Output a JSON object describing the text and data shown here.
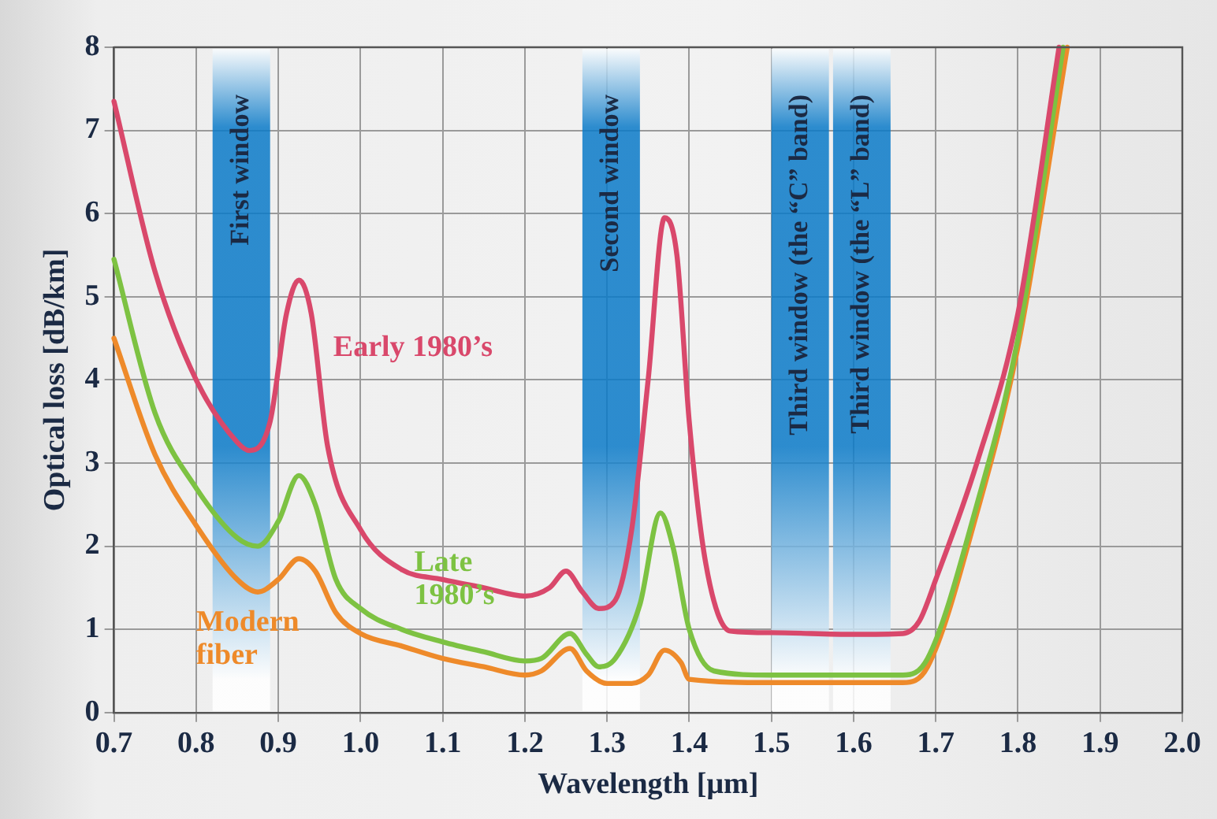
{
  "chart_data": {
    "type": "line",
    "xlabel": "Wavelength [μm]",
    "ylabel": "Optical loss [dB/km]",
    "xlim": [
      0.7,
      2.0
    ],
    "xticks": [
      0.7,
      0.8,
      0.9,
      {
        "value": 1.0,
        "label": "1.0"
      },
      1.1,
      1.2,
      1.3,
      1.4,
      1.5,
      1.6,
      1.7,
      1.8,
      1.9,
      {
        "value": 2.0,
        "label": "2.0"
      }
    ],
    "ylim": [
      0,
      8
    ],
    "yticks": [
      0,
      1,
      2,
      3,
      4,
      5,
      6,
      7,
      8
    ],
    "grid": true,
    "legend": false,
    "marker": "none",
    "line_style": "solid",
    "series": [
      {
        "name": "Early 1980’s",
        "color": "#d9486b",
        "x": [
          0.7,
          0.75,
          0.8,
          0.85,
          0.865,
          0.89,
          0.91,
          0.925,
          0.94,
          0.96,
          1.0,
          1.05,
          1.1,
          1.15,
          1.2,
          1.23,
          1.25,
          1.27,
          1.29,
          1.31,
          1.33,
          1.35,
          1.37,
          1.385,
          1.4,
          1.42,
          1.45,
          1.5,
          1.6,
          1.66,
          1.68,
          1.7,
          1.75,
          1.8,
          1.85
        ],
        "values": [
          7.35,
          5.3,
          4.0,
          3.25,
          3.15,
          3.5,
          4.8,
          5.2,
          4.8,
          3.2,
          2.2,
          1.72,
          1.6,
          1.5,
          1.4,
          1.5,
          1.7,
          1.45,
          1.25,
          1.35,
          2.2,
          4.0,
          5.95,
          5.5,
          3.5,
          1.8,
          0.98,
          0.96,
          0.94,
          0.95,
          1.1,
          1.6,
          3.0,
          4.8,
          8.0
        ]
      },
      {
        "name": "Late 1980’s",
        "color": "#7dc242",
        "x": [
          0.7,
          0.75,
          0.8,
          0.85,
          0.875,
          0.9,
          0.925,
          0.945,
          0.97,
          1.0,
          1.05,
          1.1,
          1.15,
          1.2,
          1.22,
          1.255,
          1.275,
          1.29,
          1.31,
          1.34,
          1.365,
          1.38,
          1.4,
          1.43,
          1.5,
          1.66,
          1.69,
          1.75,
          1.8,
          1.855
        ],
        "values": [
          5.45,
          3.6,
          2.7,
          2.1,
          2.0,
          2.3,
          2.85,
          2.5,
          1.6,
          1.25,
          1.0,
          0.85,
          0.73,
          0.62,
          0.65,
          0.95,
          0.7,
          0.55,
          0.65,
          1.3,
          2.4,
          2.0,
          1.0,
          0.5,
          0.45,
          0.45,
          0.65,
          2.5,
          4.5,
          8.0
        ]
      },
      {
        "name": "Modern fiber",
        "color": "#ee8a2a",
        "x": [
          0.7,
          0.75,
          0.8,
          0.85,
          0.875,
          0.9,
          0.925,
          0.945,
          0.97,
          1.0,
          1.05,
          1.1,
          1.15,
          1.2,
          1.22,
          1.255,
          1.275,
          1.3,
          1.33,
          1.35,
          1.37,
          1.39,
          1.4,
          1.5,
          1.66,
          1.69,
          1.75,
          1.8,
          1.86
        ],
        "values": [
          4.5,
          3.1,
          2.25,
          1.6,
          1.45,
          1.6,
          1.85,
          1.7,
          1.2,
          0.95,
          0.8,
          0.65,
          0.55,
          0.45,
          0.5,
          0.77,
          0.5,
          0.35,
          0.35,
          0.45,
          0.75,
          0.6,
          0.4,
          0.36,
          0.36,
          0.55,
          2.4,
          4.4,
          8.0
        ]
      }
    ],
    "bands": [
      {
        "axis": "x",
        "from": 0.82,
        "to": 0.89,
        "label": "First window",
        "color": "#0a7ac8"
      },
      {
        "axis": "x",
        "from": 1.27,
        "to": 1.34,
        "label": "Second window",
        "color": "#0a7ac8"
      },
      {
        "axis": "x",
        "from": 1.5,
        "to": 1.57,
        "label": "Third window (the “C” band)",
        "color": "#0a7ac8"
      },
      {
        "axis": "x",
        "from": 1.575,
        "to": 1.645,
        "label": "Third window (the “L” band)",
        "color": "#0a7ac8"
      }
    ]
  }
}
